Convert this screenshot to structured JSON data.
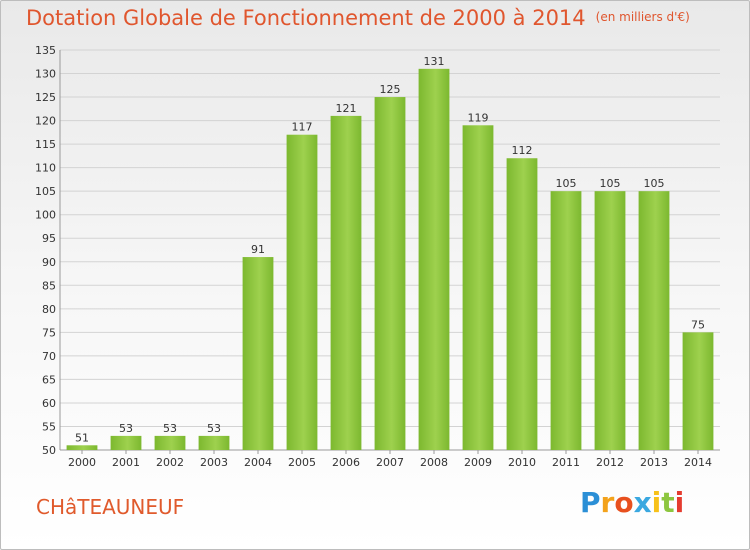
{
  "chart_data": {
    "type": "bar",
    "title": "Dotation Globale de Fonctionnement de 2000 à 2014",
    "unit_note": "(en milliers d'€)",
    "categories": [
      "2000",
      "2001",
      "2002",
      "2003",
      "2004",
      "2005",
      "2006",
      "2007",
      "2008",
      "2009",
      "2010",
      "2011",
      "2012",
      "2013",
      "2014"
    ],
    "values": [
      51,
      53,
      53,
      53,
      91,
      117,
      121,
      125,
      131,
      119,
      112,
      105,
      105,
      105,
      75
    ],
    "ylim": [
      50,
      135
    ],
    "yticks": [
      50,
      55,
      60,
      65,
      70,
      75,
      80,
      85,
      90,
      95,
      100,
      105,
      110,
      115,
      120,
      125,
      130,
      135
    ],
    "grid": true,
    "bar_color": "#7cb82f",
    "bar_color_light": "#9ed14e"
  },
  "commune": "CHâTEAUNEUF",
  "logo": {
    "letters": [
      "P",
      "r",
      "o",
      "x",
      "i",
      "t",
      "i"
    ],
    "colors": [
      "#2b8fd6",
      "#f3a21b",
      "#e8501e",
      "#3aa8e0",
      "#f7c11a",
      "#8dc63f",
      "#e53c2f"
    ]
  },
  "colors": {
    "title": "#e0562e"
  }
}
